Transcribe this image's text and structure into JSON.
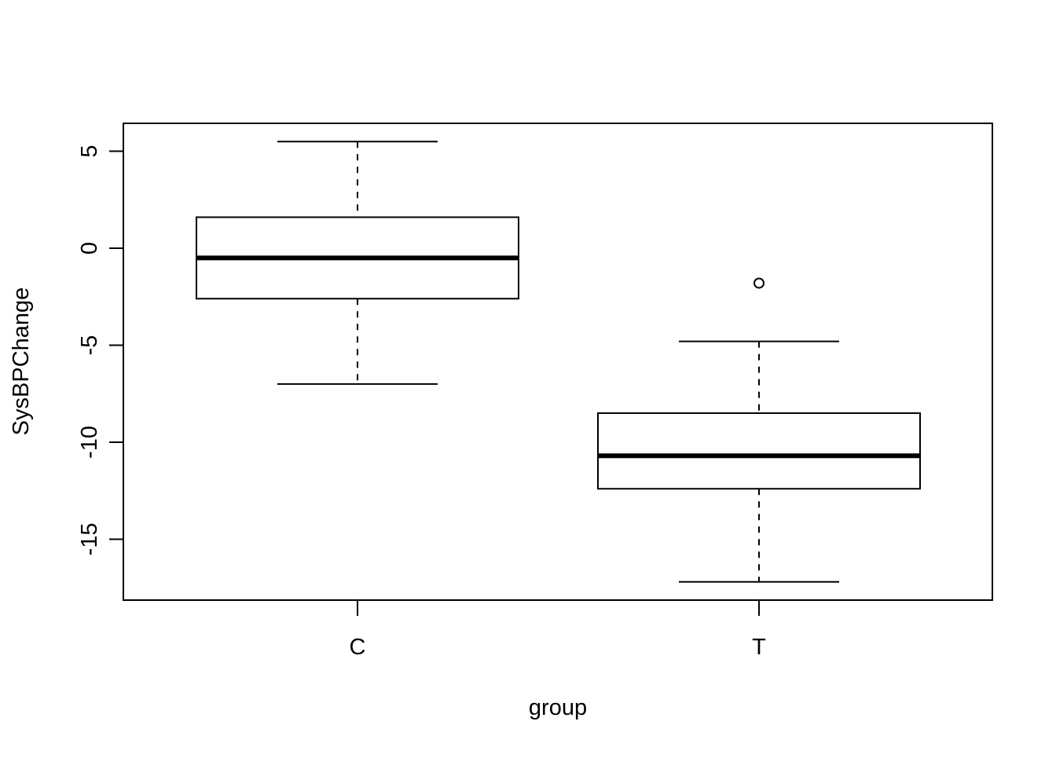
{
  "chart_data": {
    "type": "boxplot",
    "title": "",
    "xlabel": "group",
    "ylabel": "SysBPChange",
    "categories": [
      "C",
      "T"
    ],
    "boxes": [
      {
        "category": "C",
        "whisker_low": -7.0,
        "q1": -2.6,
        "median": -0.5,
        "q3": 1.6,
        "whisker_high": 5.5,
        "outliers": []
      },
      {
        "category": "T",
        "whisker_low": -17.2,
        "q1": -12.4,
        "median": -10.7,
        "q3": -8.5,
        "whisker_high": -4.8,
        "outliers": [
          -1.8
        ]
      }
    ],
    "yticks": [
      5,
      0,
      -5,
      -10,
      -15
    ],
    "ytick_labels": [
      "5",
      "0",
      "-5",
      "-10",
      "-15"
    ],
    "ylim": [
      -18.14,
      6.44
    ],
    "grid": false,
    "legend": "none"
  }
}
